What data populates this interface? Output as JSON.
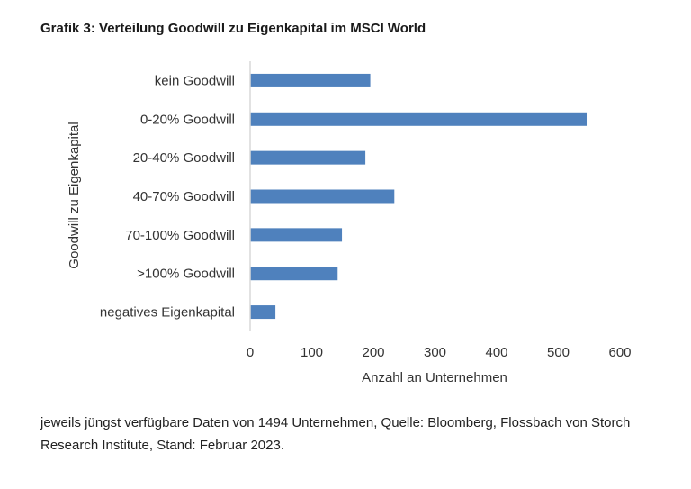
{
  "title": "Grafik 3: Verteilung Goodwill zu Eigenkapital im MSCI World",
  "footnote": "jeweils jüngst verfügbare Daten von 1494 Unternehmen, Quelle: Bloomberg, Flossbach von Storch Research Institute, Stand: Februar 2023.",
  "chart_data": {
    "type": "bar",
    "orientation": "horizontal",
    "categories": [
      "kein Goodwill",
      "0-20% Goodwill",
      "20-40% Goodwill",
      "40-70% Goodwill",
      "70-100% Goodwill",
      ">100% Goodwill",
      "negatives Eigenkapital"
    ],
    "values": [
      195,
      546,
      187,
      234,
      149,
      142,
      41
    ],
    "xlabel": "Anzahl an Unternehmen",
    "ylabel": "Goodwill zu Eigenkapital",
    "xlim": [
      0,
      600
    ],
    "xticks": [
      "0",
      "100",
      "200",
      "300",
      "400",
      "500",
      "600"
    ],
    "grid": false,
    "legend": "none",
    "bar_color": "#4f81bd",
    "axis_color": "#d9d9d9"
  }
}
